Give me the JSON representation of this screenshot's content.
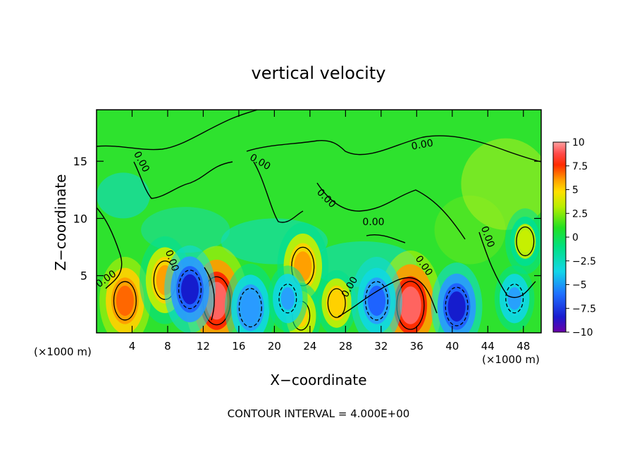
{
  "chart_data": {
    "type": "heatmap",
    "title": "vertical velocity",
    "xlabel": "X−coordinate",
    "ylabel": "Z−coordinate",
    "x_unit_left": "(×1000 m)",
    "x_unit_right": "(×1000 m)",
    "footer": "CONTOUR INTERVAL = 4.000E+00",
    "xlim": [
      0,
      50
    ],
    "ylim": [
      0,
      19.5
    ],
    "x_ticks": [
      4,
      8,
      12,
      16,
      20,
      24,
      28,
      32,
      36,
      40,
      44,
      48
    ],
    "y_ticks": [
      5,
      10,
      15
    ],
    "colorbar": {
      "ticks": [
        "10",
        "7.5",
        "5",
        "2.5",
        "0",
        "−2.5",
        "−5",
        "−7.5",
        "−10"
      ],
      "range": [
        -10,
        10
      ]
    },
    "contour_labels": [
      "0.00",
      "0.00",
      "0.00",
      "0.00",
      "0.00",
      "0.00",
      "0.00",
      "0.00",
      "0.00",
      "0.00"
    ],
    "field_features": [
      {
        "x": 3.2,
        "z": 2.8,
        "w": 6.0,
        "kind": "updraft"
      },
      {
        "x": 7.7,
        "z": 4.6,
        "w": 5.0,
        "kind": "updraft"
      },
      {
        "x": 13.5,
        "z": 2.8,
        "w": 9.0,
        "kind": "updraft"
      },
      {
        "x": 23.2,
        "z": 5.8,
        "w": 5.0,
        "kind": "updraft"
      },
      {
        "x": 23.0,
        "z": 1.5,
        "w": 4.0,
        "kind": "updraft"
      },
      {
        "x": 27.0,
        "z": 2.6,
        "w": 4.5,
        "kind": "updraft"
      },
      {
        "x": 35.3,
        "z": 2.4,
        "w": 9.5,
        "kind": "updraft"
      },
      {
        "x": 10.5,
        "z": 3.8,
        "w": -7.5,
        "kind": "downdraft"
      },
      {
        "x": 17.3,
        "z": 2.2,
        "w": -5.0,
        "kind": "downdraft"
      },
      {
        "x": 21.5,
        "z": 3.0,
        "w": -4.0,
        "kind": "downdraft"
      },
      {
        "x": 31.5,
        "z": 2.8,
        "w": -6.0,
        "kind": "downdraft"
      },
      {
        "x": 40.5,
        "z": 2.3,
        "w": -7.0,
        "kind": "downdraft"
      },
      {
        "x": 47.0,
        "z": 3.0,
        "w": -4.0,
        "kind": "downdraft"
      },
      {
        "x": 48.2,
        "z": 8.0,
        "w": 3.0,
        "kind": "updraft"
      }
    ]
  }
}
